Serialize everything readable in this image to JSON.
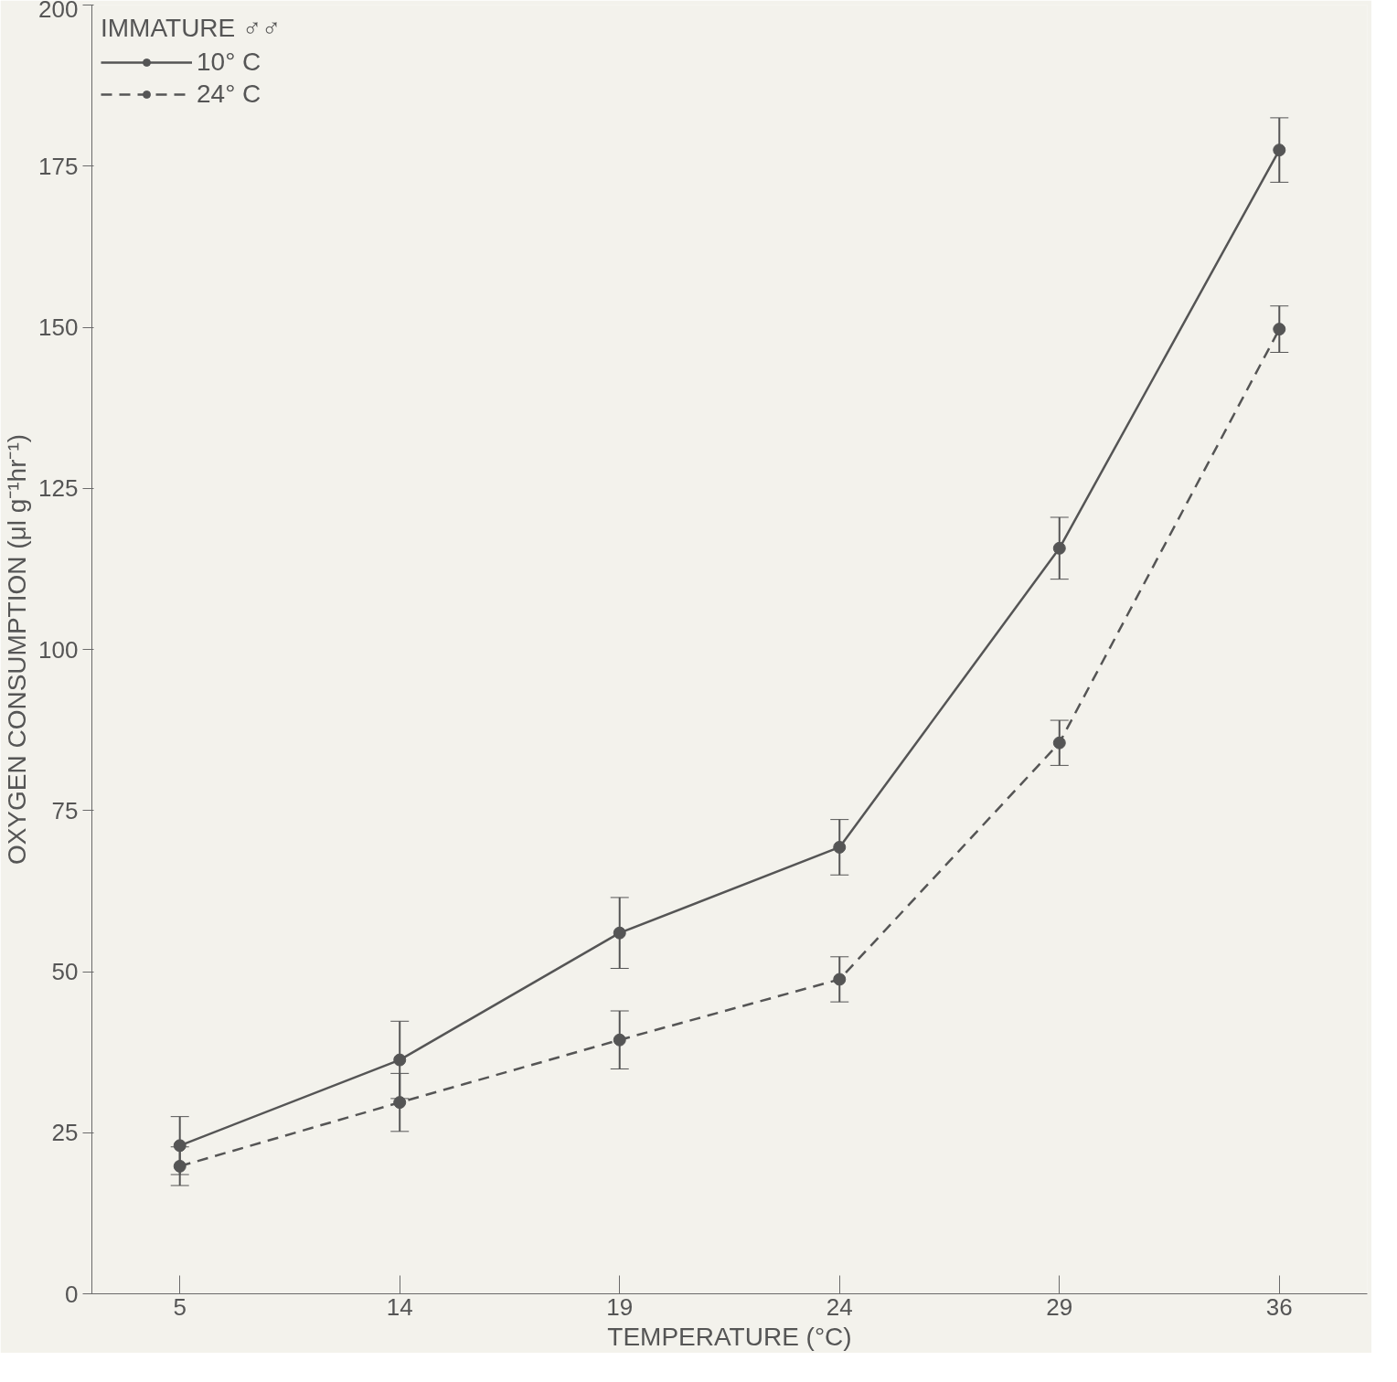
{
  "chart_data": {
    "type": "line",
    "xlabel": "TEMPERATURE (°C)",
    "ylabel": "OXYGEN CONSUMPTION (μl g⁻¹hr⁻¹)",
    "legend_title": "IMMATURE ♂♂",
    "categories": [
      "5",
      "14",
      "19",
      "24",
      "29",
      "36"
    ],
    "series": [
      {
        "name": "10° C",
        "color": "#555555",
        "line_style": "solid",
        "values": [
          23,
          36.3,
          56,
          69.3,
          115.7,
          177.5
        ],
        "errors": [
          4.5,
          6,
          5.5,
          4.3,
          4.8,
          5
        ]
      },
      {
        "name": "24° C",
        "color": "#555555",
        "line_style": "dashed",
        "values": [
          19.8,
          29.7,
          39.4,
          48.8,
          85.5,
          149.7
        ],
        "errors": [
          3,
          4.5,
          4.5,
          3.5,
          3.5,
          3.6
        ]
      }
    ],
    "ylim": [
      0,
      200
    ],
    "yticks": [
      0,
      25,
      50,
      75,
      100,
      125,
      150,
      175,
      200
    ],
    "grid": false,
    "legend": "top left",
    "marker": "circle"
  }
}
